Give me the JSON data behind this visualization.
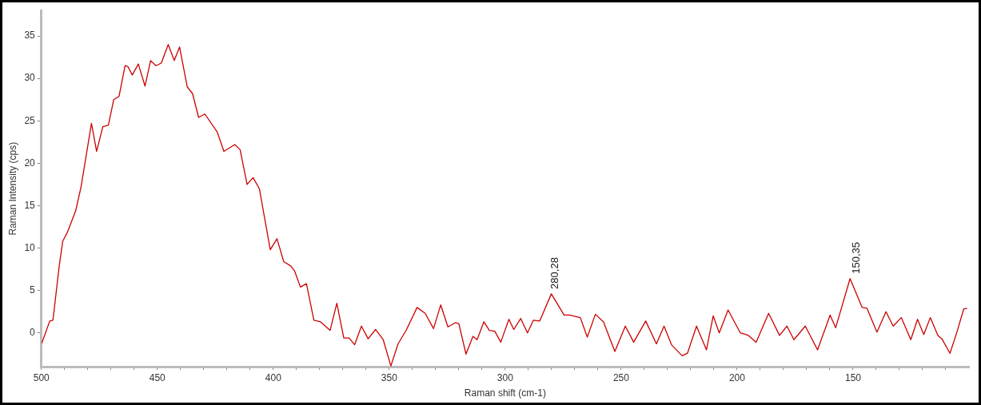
{
  "chart_data": {
    "type": "line",
    "xlabel": "Raman shift (cm-1)",
    "ylabel": "Raman Intensity (cps)",
    "xlim": [
      500,
      100
    ],
    "ylim": [
      -4,
      38
    ],
    "xticks": [
      500,
      {
        "value": 490,
        "label": null
      },
      {
        "value": 480,
        "label": null
      },
      {
        "value": 470,
        "label": null
      },
      {
        "value": 460,
        "label": null
      },
      450,
      {
        "value": 440,
        "label": null
      },
      {
        "value": 430,
        "label": null
      },
      {
        "value": 420,
        "label": null
      },
      {
        "value": 410,
        "label": null
      },
      400,
      {
        "value": 390,
        "label": null
      },
      {
        "value": 380,
        "label": null
      },
      {
        "value": 370,
        "label": null
      },
      {
        "value": 360,
        "label": null
      },
      350,
      {
        "value": 340,
        "label": null
      },
      {
        "value": 330,
        "label": null
      },
      {
        "value": 320,
        "label": null
      },
      {
        "value": 310,
        "label": null
      },
      300,
      {
        "value": 290,
        "label": null
      },
      {
        "value": 280,
        "label": null
      },
      {
        "value": 270,
        "label": null
      },
      {
        "value": 260,
        "label": null
      },
      250,
      {
        "value": 240,
        "label": null
      },
      {
        "value": 230,
        "label": null
      },
      {
        "value": 220,
        "label": null
      },
      {
        "value": 210,
        "label": null
      },
      200,
      {
        "value": 190,
        "label": null
      },
      {
        "value": 180,
        "label": null
      },
      {
        "value": 170,
        "label": null
      },
      {
        "value": 160,
        "label": null
      },
      150,
      {
        "value": 140,
        "label": null
      },
      {
        "value": 130,
        "label": null
      },
      {
        "value": 120,
        "label": null
      },
      {
        "value": 110,
        "label": null
      }
    ],
    "yticks": [
      0,
      5,
      10,
      15,
      20,
      25,
      30,
      35
    ],
    "grid": false,
    "legend": false,
    "marker": "none",
    "line_style": "solid",
    "annotations": [
      {
        "text": "280,28",
        "x": 280.28,
        "y": 4.6
      },
      {
        "text": "150,35",
        "x": 150.35,
        "y": 6.4
      }
    ],
    "series": [
      {
        "color": "#cc0000",
        "x": [
          499.8,
          496.4,
          495,
          492.3,
          490.8,
          488.7,
          485.2,
          482.9,
          480.5,
          478.4,
          476.2,
          473.5,
          471.1,
          468.8,
          466.5,
          463.9,
          462.7,
          460.8,
          458.2,
          455.3,
          452.9,
          450.6,
          448.3,
          445.3,
          442.7,
          440.4,
          437.1,
          434.8,
          432.2,
          429.5,
          424.2,
          421.3,
          416.6,
          414.3,
          411.3,
          408.7,
          406,
          401.3,
          398.4,
          395.5,
          392.5,
          390.8,
          388.3,
          385.7,
          382.5,
          379.6,
          375.5,
          372.6,
          369.6,
          367.3,
          364.9,
          362,
          359.1,
          355.9,
          352.6,
          349.3,
          346.2,
          342.7,
          338,
          334.5,
          330.9,
          327.8,
          324.7,
          321.5,
          320,
          316.9,
          313.9,
          312.1,
          309.2,
          306.8,
          304.5,
          301.9,
          298.4,
          296.3,
          293.3,
          290.4,
          287.8,
          285.1,
          280.1,
          274.6,
          272.3,
          267.6,
          264.6,
          261.1,
          257.6,
          252.7,
          248.2,
          244.6,
          239.4,
          234.8,
          231.5,
          228.3,
          223.7,
          221.4,
          217.5,
          213.2,
          210.3,
          207.7,
          203.9,
          198.6,
          195.1,
          191.8,
          186.4,
          181.7,
          178.5,
          175.5,
          170.6,
          165.3,
          159.9,
          157.5,
          151.3,
          146.1,
          144,
          139.7,
          135.8,
          132.7,
          129.2,
          125.1,
          122.2,
          119.5,
          116.7,
          113.4,
          111.7,
          108.2,
          105.2,
          102.3,
          100.8
        ],
        "values": [
          -1.2,
          1.4,
          1.5,
          7.9,
          10.8,
          11.9,
          14.4,
          17.2,
          21.2,
          24.7,
          21.4,
          24.3,
          24.5,
          27.5,
          27.9,
          31.5,
          31.4,
          30.4,
          31.7,
          29.1,
          32.1,
          31.5,
          31.8,
          34,
          32.1,
          33.7,
          29,
          28.2,
          25.4,
          25.8,
          23.7,
          21.4,
          22.2,
          21.6,
          17.5,
          18.3,
          17,
          9.8,
          11.1,
          8.4,
          7.9,
          7.3,
          5.4,
          5.8,
          1.5,
          1.3,
          0.3,
          3.5,
          -0.6,
          -0.6,
          -1.4,
          0.8,
          -0.7,
          0.4,
          -0.8,
          -3.9,
          -1.3,
          0.3,
          3,
          2.3,
          0.5,
          3.3,
          0.7,
          1.2,
          1.1,
          -2.5,
          -0.4,
          -0.8,
          1.3,
          0.3,
          0.2,
          -1.1,
          1.6,
          0.4,
          1.7,
          0,
          1.5,
          1.4,
          4.6,
          2.1,
          2.1,
          1.8,
          -0.5,
          2.2,
          1.3,
          -2.2,
          0.8,
          -1.1,
          1.4,
          -1.3,
          0.8,
          -1.4,
          -2.7,
          -2.4,
          0.8,
          -2,
          2,
          0,
          2.7,
          0,
          -0.3,
          -1.1,
          2.3,
          -0.3,
          0.8,
          -0.8,
          0.8,
          -2,
          2.1,
          0.6,
          6.4,
          3,
          2.9,
          0.1,
          2.5,
          0.8,
          1.8,
          -0.8,
          1.6,
          -0.2,
          1.8,
          -0.3,
          -0.7,
          -2.4,
          0.1,
          2.8,
          2.9
        ]
      }
    ]
  }
}
